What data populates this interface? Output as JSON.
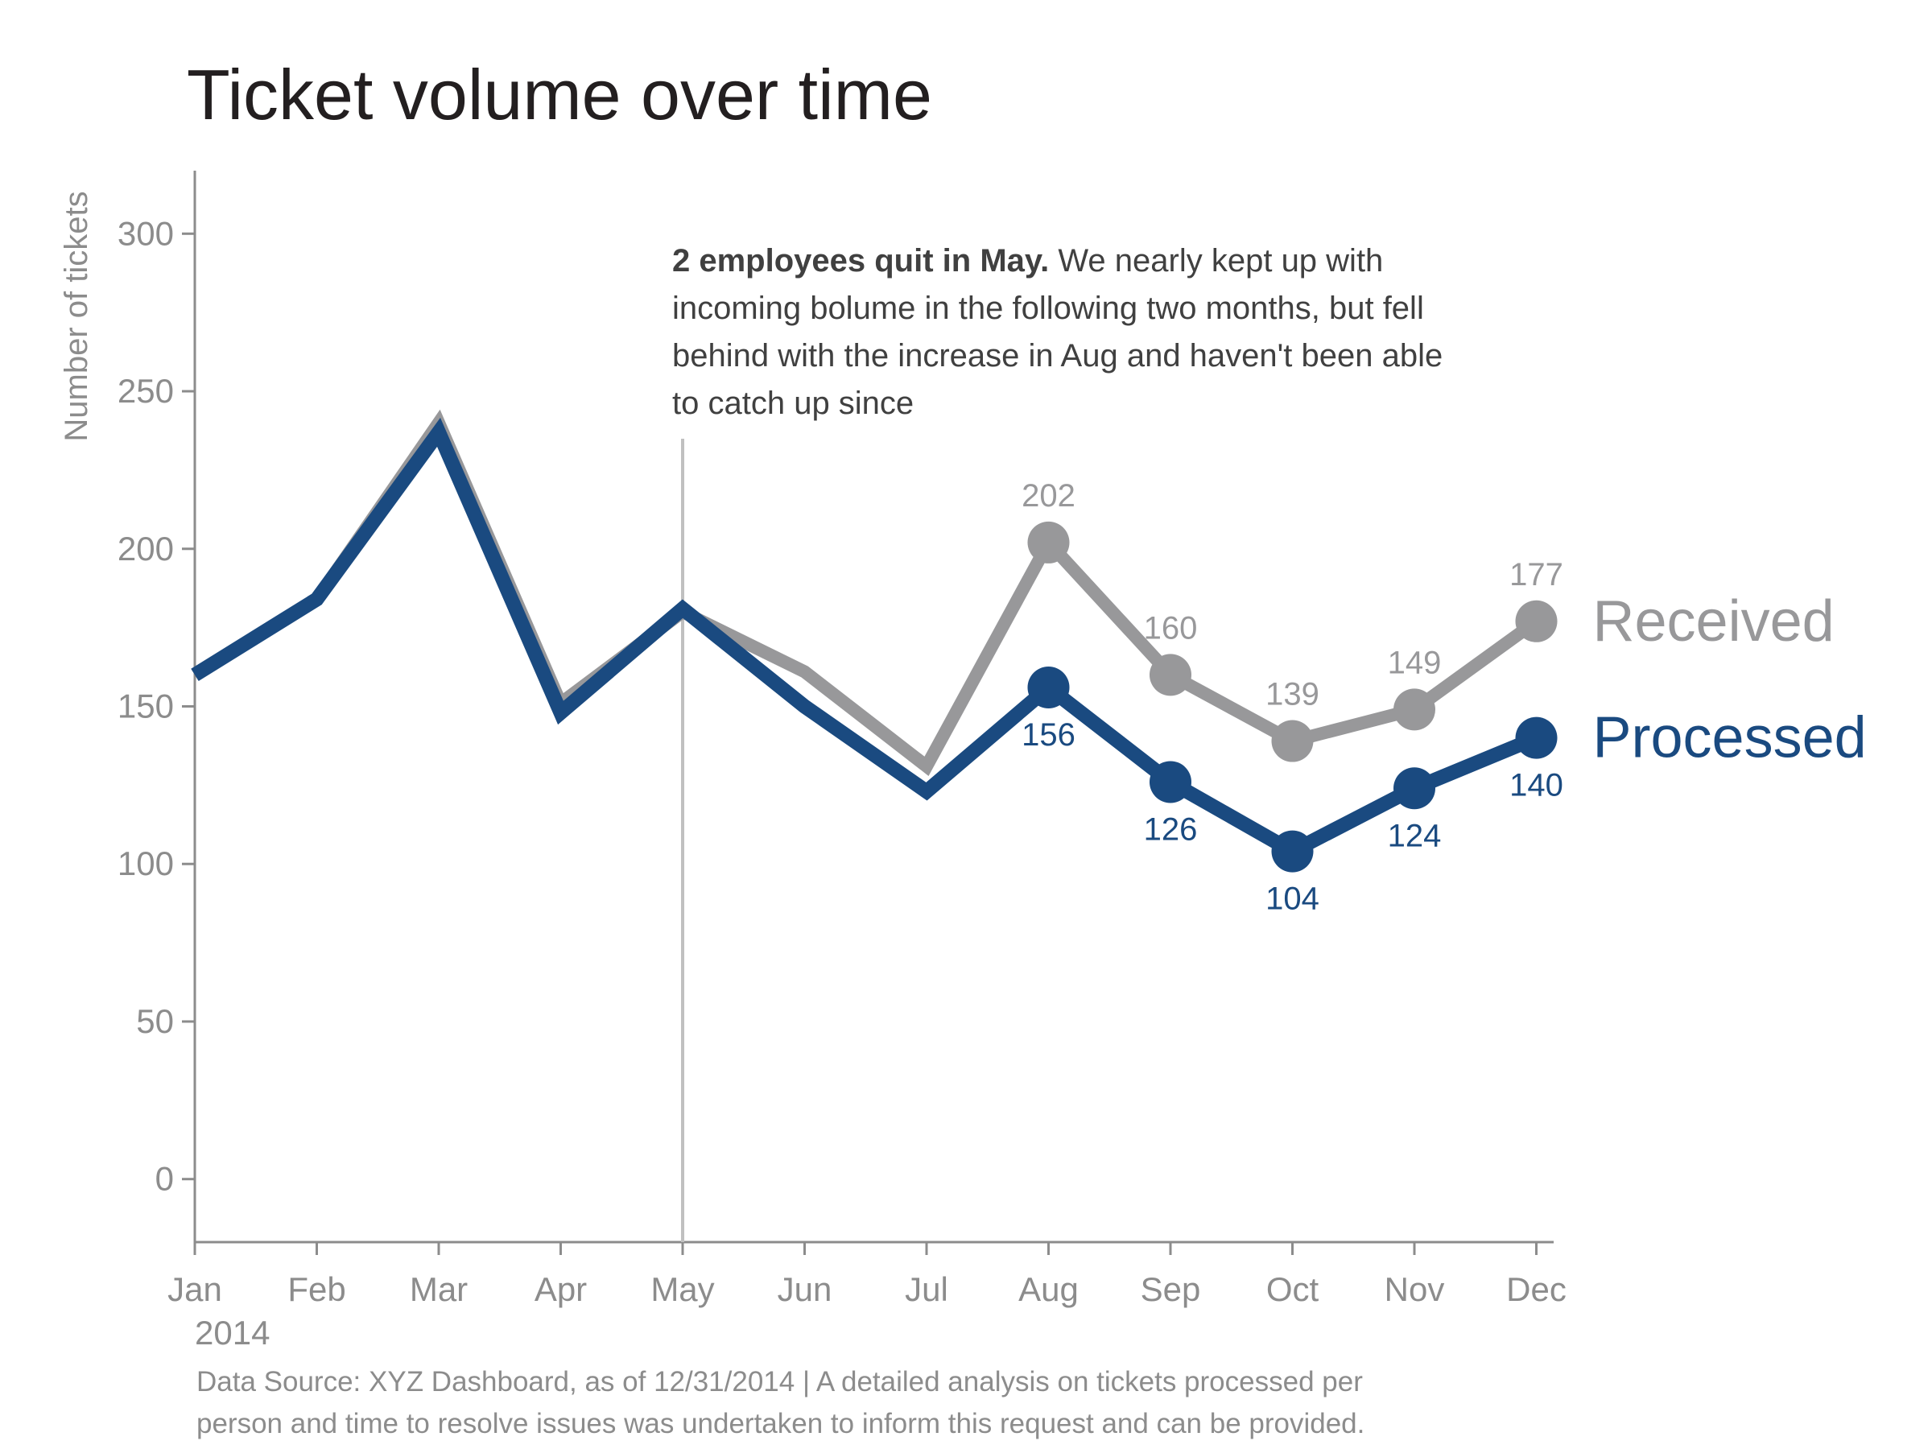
{
  "chart_data": {
    "type": "line",
    "title": "Ticket volume over time",
    "xlabel": "",
    "ylabel": "Number of tickets",
    "categories": [
      "Jan",
      "Feb",
      "Mar",
      "Apr",
      "May",
      "Jun",
      "Jul",
      "Aug",
      "Sep",
      "Oct",
      "Nov",
      "Dec"
    ],
    "x_sublabel": "2014",
    "yticks": [
      0,
      50,
      100,
      150,
      200,
      250,
      300
    ],
    "ylim": [
      -20,
      320
    ],
    "grid": false,
    "series": [
      {
        "name": "Received",
        "color": "#98989a",
        "values": [
          160,
          184,
          240,
          151,
          180,
          161,
          131,
          202,
          160,
          139,
          149,
          177
        ],
        "labeled_from_index": 7
      },
      {
        "name": "Processed",
        "color": "#1a4a80",
        "values": [
          160,
          184,
          237,
          148,
          181,
          150,
          123,
          156,
          126,
          104,
          124,
          140
        ],
        "labeled_from_index": 7
      }
    ],
    "annotation": {
      "at_category": "May",
      "bold_text": "2 employees quit in May.",
      "lines": [
        " We nearly kept up with",
        "incoming bolume in the following two months, but fell",
        "behind with the increase in Aug and haven't been able",
        "to catch up since"
      ]
    },
    "footer_lines": [
      "Data Source: XYZ Dashboard, as of 12/31/2014 | A detailed analysis on tickets processed per",
      "person and time to resolve issues was undertaken to inform this request and can be provided."
    ]
  }
}
